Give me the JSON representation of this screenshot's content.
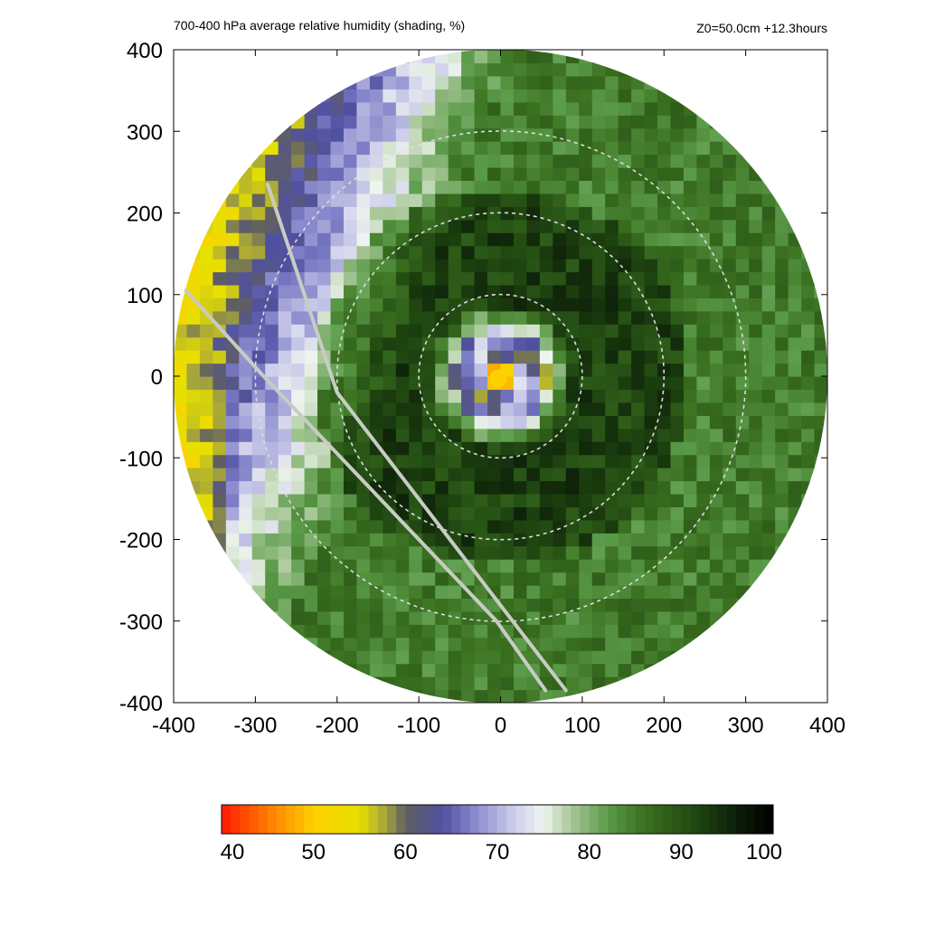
{
  "chart_data": {
    "type": "heatmap",
    "title": "700-400 hPa average relative humidity (shading, %)",
    "annotation": "Z0=50.0cm  +12.3hours",
    "xlim": [
      -400,
      400
    ],
    "ylim": [
      -400,
      400
    ],
    "x_ticks": [
      "-400",
      "-300",
      "-200",
      "-100",
      "0",
      "100",
      "200",
      "300",
      "400"
    ],
    "y_ticks": [
      "400",
      "300",
      "200",
      "100",
      "0",
      "-100",
      "-200",
      "-300",
      "-400"
    ],
    "domain_radius": 400,
    "center": [
      0,
      0
    ],
    "range_rings": [
      100,
      200,
      300
    ],
    "colorbar": {
      "min": 40,
      "max": 100,
      "ticks": [
        "40",
        "50",
        "60",
        "70",
        "80",
        "90",
        "100"
      ],
      "stops": [
        {
          "v": 40,
          "c": "#ff1a00"
        },
        {
          "v": 45,
          "c": "#ff7a00"
        },
        {
          "v": 50,
          "c": "#ffd000"
        },
        {
          "v": 55,
          "c": "#e6e000"
        },
        {
          "v": 58,
          "c": "#a0a040"
        },
        {
          "v": 60,
          "c": "#606060"
        },
        {
          "v": 64,
          "c": "#5050a0"
        },
        {
          "v": 67,
          "c": "#8080c8"
        },
        {
          "v": 72,
          "c": "#d0d0ec"
        },
        {
          "v": 75,
          "c": "#eef4ee"
        },
        {
          "v": 78,
          "c": "#a8c898"
        },
        {
          "v": 82,
          "c": "#5a9a48"
        },
        {
          "v": 86,
          "c": "#3a7020"
        },
        {
          "v": 92,
          "c": "#1e4410"
        },
        {
          "v": 96,
          "c": "#0c1e08"
        },
        {
          "v": 100,
          "c": "#000000"
        }
      ]
    },
    "field_description": {
      "eye_center_rh": 50,
      "eyewall_rh": 66,
      "inner_ring_rh": 92,
      "outer_rh": 85,
      "west_dry_rh": 62,
      "far_west_rh": 52
    },
    "tracks": [
      {
        "points": [
          [
            -285,
            235
          ],
          [
            -200,
            -20
          ],
          [
            80,
            -385
          ]
        ]
      },
      {
        "points": [
          [
            -385,
            105
          ],
          [
            -290,
            0
          ],
          [
            -5,
            -300
          ],
          [
            55,
            -385
          ]
        ]
      }
    ]
  }
}
